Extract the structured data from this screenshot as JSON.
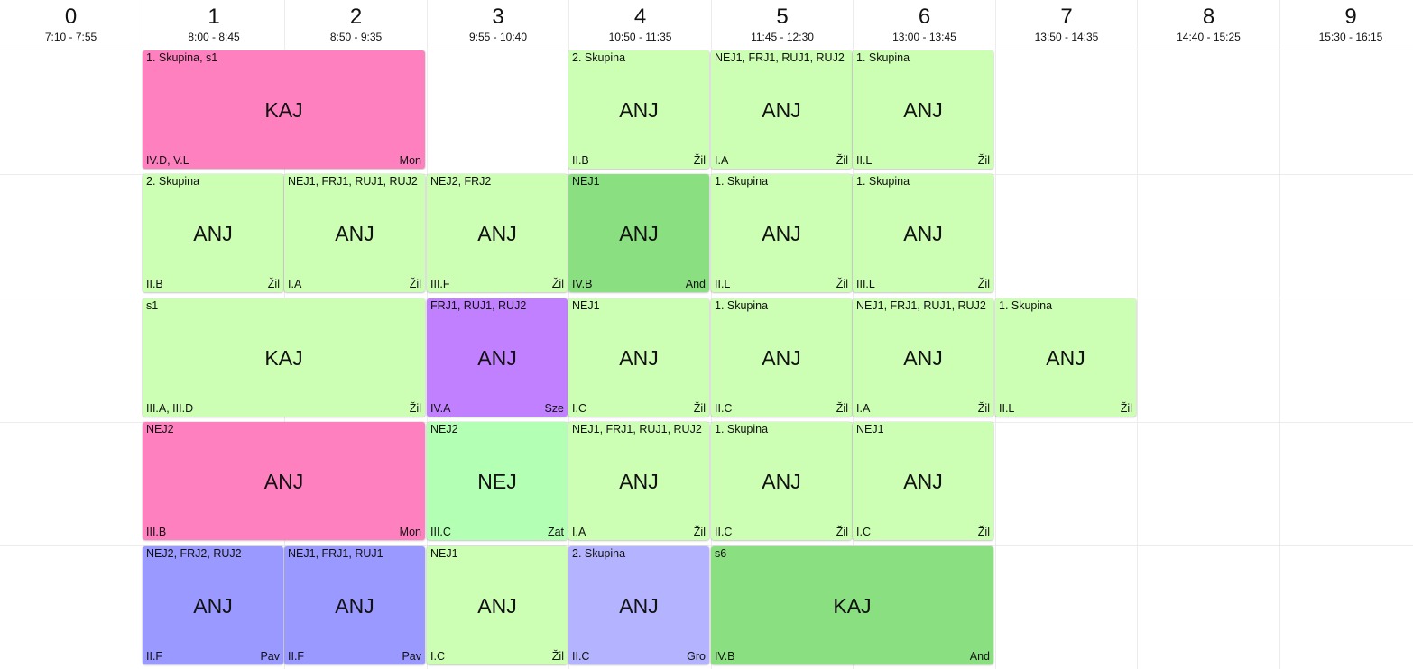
{
  "periods": [
    {
      "num": "0",
      "time": "7:10 - 7:55"
    },
    {
      "num": "1",
      "time": "8:00 - 8:45"
    },
    {
      "num": "2",
      "time": "8:50 - 9:35"
    },
    {
      "num": "3",
      "time": "9:55 - 10:40"
    },
    {
      "num": "4",
      "time": "10:50 - 11:35"
    },
    {
      "num": "5",
      "time": "11:45 - 12:30"
    },
    {
      "num": "6",
      "time": "13:00 - 13:45"
    },
    {
      "num": "7",
      "time": "13:50 - 14:35"
    },
    {
      "num": "8",
      "time": "14:40 - 15:25"
    },
    {
      "num": "9",
      "time": "15:30 - 16:15"
    }
  ],
  "colors": {
    "light_green": "#ccffb3",
    "green": "#8adf80",
    "pink": "#ff80bf",
    "purple": "#c080ff",
    "mint": "#b3ffb3",
    "blue": "#9999ff",
    "light_blue": "#b3b3ff"
  },
  "lessons": [
    {
      "day": 0,
      "period": 1,
      "span": 2,
      "group": "1. Skupina, s1",
      "subject": "KAJ",
      "cls": "IV.D, V.L",
      "teacher": "Mon",
      "color": "pink"
    },
    {
      "day": 0,
      "period": 4,
      "span": 1,
      "group": "2. Skupina",
      "subject": "ANJ",
      "cls": "II.B",
      "teacher": "Žil",
      "color": "light_green"
    },
    {
      "day": 0,
      "period": 5,
      "span": 1,
      "group": "NEJ1, FRJ1, RUJ1, RUJ2",
      "subject": "ANJ",
      "cls": "I.A",
      "teacher": "Žil",
      "color": "light_green"
    },
    {
      "day": 0,
      "period": 6,
      "span": 1,
      "group": "1. Skupina",
      "subject": "ANJ",
      "cls": "II.L",
      "teacher": "Žil",
      "color": "light_green"
    },
    {
      "day": 1,
      "period": 1,
      "span": 1,
      "group": "2. Skupina",
      "subject": "ANJ",
      "cls": "II.B",
      "teacher": "Žil",
      "color": "light_green"
    },
    {
      "day": 1,
      "period": 2,
      "span": 1,
      "group": "NEJ1, FRJ1, RUJ1, RUJ2",
      "subject": "ANJ",
      "cls": "I.A",
      "teacher": "Žil",
      "color": "light_green"
    },
    {
      "day": 1,
      "period": 3,
      "span": 1,
      "group": "NEJ2, FRJ2",
      "subject": "ANJ",
      "cls": "III.F",
      "teacher": "Žil",
      "color": "light_green"
    },
    {
      "day": 1,
      "period": 4,
      "span": 1,
      "group": "NEJ1",
      "subject": "ANJ",
      "cls": "IV.B",
      "teacher": "And",
      "color": "green"
    },
    {
      "day": 1,
      "period": 5,
      "span": 1,
      "group": "1. Skupina",
      "subject": "ANJ",
      "cls": "II.L",
      "teacher": "Žil",
      "color": "light_green"
    },
    {
      "day": 1,
      "period": 6,
      "span": 1,
      "group": "1. Skupina",
      "subject": "ANJ",
      "cls": "III.L",
      "teacher": "Žil",
      "color": "light_green"
    },
    {
      "day": 2,
      "period": 1,
      "span": 2,
      "group": "s1",
      "subject": "KAJ",
      "cls": "III.A, III.D",
      "teacher": "Žil",
      "color": "light_green"
    },
    {
      "day": 2,
      "period": 3,
      "span": 1,
      "group": "FRJ1, RUJ1, RUJ2",
      "subject": "ANJ",
      "cls": "IV.A",
      "teacher": "Sze",
      "color": "purple"
    },
    {
      "day": 2,
      "period": 4,
      "span": 1,
      "group": "NEJ1",
      "subject": "ANJ",
      "cls": "I.C",
      "teacher": "Žil",
      "color": "light_green"
    },
    {
      "day": 2,
      "period": 5,
      "span": 1,
      "group": "1. Skupina",
      "subject": "ANJ",
      "cls": "II.C",
      "teacher": "Žil",
      "color": "light_green"
    },
    {
      "day": 2,
      "period": 6,
      "span": 1,
      "group": "NEJ1, FRJ1, RUJ1, RUJ2",
      "subject": "ANJ",
      "cls": "I.A",
      "teacher": "Žil",
      "color": "light_green"
    },
    {
      "day": 2,
      "period": 7,
      "span": 1,
      "group": "1. Skupina",
      "subject": "ANJ",
      "cls": "II.L",
      "teacher": "Žil",
      "color": "light_green"
    },
    {
      "day": 3,
      "period": 1,
      "span": 2,
      "group": "NEJ2",
      "subject": "ANJ",
      "cls": "III.B",
      "teacher": "Mon",
      "color": "pink"
    },
    {
      "day": 3,
      "period": 3,
      "span": 1,
      "group": "NEJ2",
      "subject": "NEJ",
      "cls": "III.C",
      "teacher": "Zat",
      "color": "mint"
    },
    {
      "day": 3,
      "period": 4,
      "span": 1,
      "group": "NEJ1, FRJ1, RUJ1, RUJ2",
      "subject": "ANJ",
      "cls": "I.A",
      "teacher": "Žil",
      "color": "light_green"
    },
    {
      "day": 3,
      "period": 5,
      "span": 1,
      "group": "1. Skupina",
      "subject": "ANJ",
      "cls": "II.C",
      "teacher": "Žil",
      "color": "light_green"
    },
    {
      "day": 3,
      "period": 6,
      "span": 1,
      "group": "NEJ1",
      "subject": "ANJ",
      "cls": "I.C",
      "teacher": "Žil",
      "color": "light_green"
    },
    {
      "day": 4,
      "period": 1,
      "span": 1,
      "group": "NEJ2, FRJ2, RUJ2",
      "subject": "ANJ",
      "cls": "II.F",
      "teacher": "Pav",
      "color": "blue"
    },
    {
      "day": 4,
      "period": 2,
      "span": 1,
      "group": "NEJ1, FRJ1, RUJ1",
      "subject": "ANJ",
      "cls": "II.F",
      "teacher": "Pav",
      "color": "blue"
    },
    {
      "day": 4,
      "period": 3,
      "span": 1,
      "group": "NEJ1",
      "subject": "ANJ",
      "cls": "I.C",
      "teacher": "Žil",
      "color": "light_green"
    },
    {
      "day": 4,
      "period": 4,
      "span": 1,
      "group": "2. Skupina",
      "subject": "ANJ",
      "cls": "II.C",
      "teacher": "Gro",
      "color": "light_blue"
    },
    {
      "day": 4,
      "period": 5,
      "span": 2,
      "group": "s6",
      "subject": "KAJ",
      "cls": "IV.B",
      "teacher": "And",
      "color": "green"
    }
  ]
}
